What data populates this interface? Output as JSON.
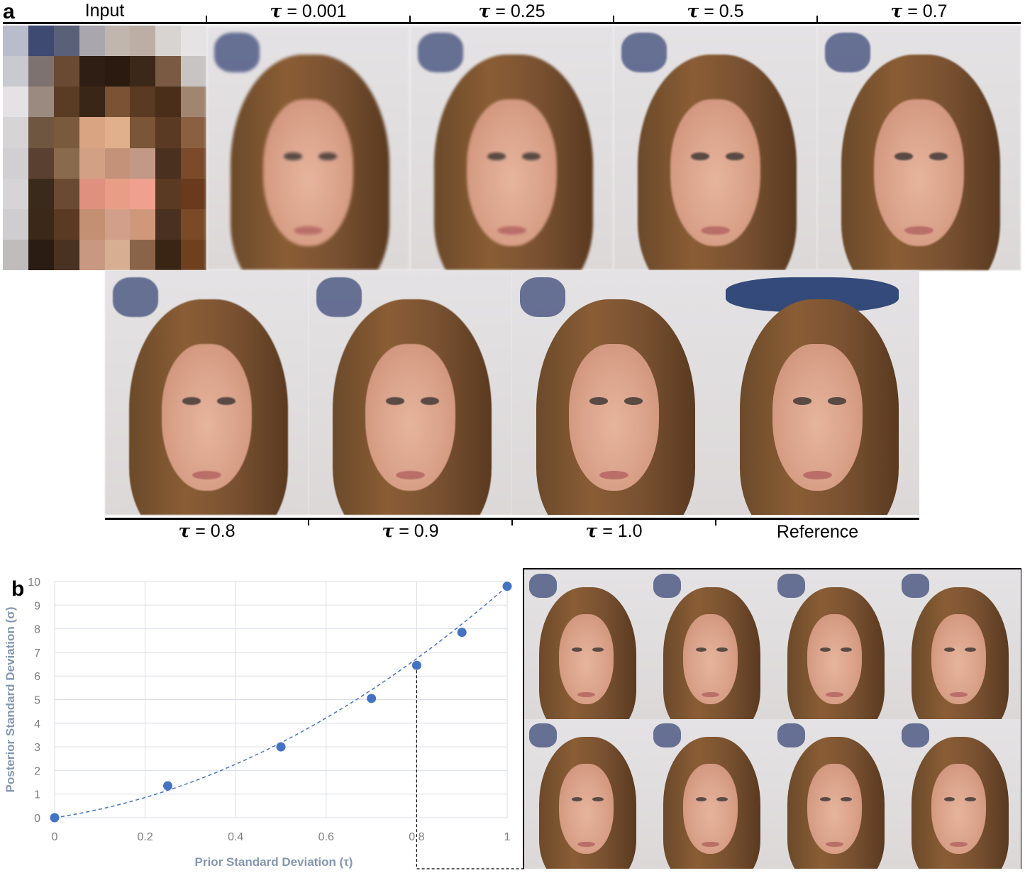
{
  "panel_a": {
    "letter": "a",
    "top_labels": [
      {
        "kind": "plain",
        "text": "Input"
      },
      {
        "kind": "tau",
        "symbol": "τ",
        "value": " = 0.001"
      },
      {
        "kind": "tau",
        "symbol": "τ",
        "value": " = 0.25"
      },
      {
        "kind": "tau",
        "symbol": "τ",
        "value": " = 0.5"
      },
      {
        "kind": "tau",
        "symbol": "τ",
        "value": " = 0.7"
      }
    ],
    "bottom_labels": [
      {
        "kind": "tau",
        "symbol": "τ",
        "value": " = 0.8"
      },
      {
        "kind": "tau",
        "symbol": "τ",
        "value": " = 0.9"
      },
      {
        "kind": "tau",
        "symbol": "τ",
        "value": " = 1.0"
      },
      {
        "kind": "plain",
        "text": "Reference"
      }
    ],
    "input_pixels": [
      "#b9bccb",
      "#3e4a72",
      "#5a6078",
      "#a9a7ad",
      "#c0b6ae",
      "#bcaea4",
      "#d8d4d2",
      "#e6e3e4",
      "#c9c9d0",
      "#7d7270",
      "#6a4a32",
      "#2e1e14",
      "#2a1a10",
      "#3c2818",
      "#7a5a42",
      "#c9c4c4",
      "#e4e2e4",
      "#9a8a80",
      "#5a3c24",
      "#3a2616",
      "#7a5234",
      "#5a3a22",
      "#4a2e1a",
      "#a08670",
      "#d7d4d6",
      "#6e5640",
      "#7a5a3c",
      "#d9a482",
      "#e0b08c",
      "#7a5538",
      "#5a3a22",
      "#8a6040",
      "#d2cfd2",
      "#5a4030",
      "#8a6a4c",
      "#d2a084",
      "#c49278",
      "#c29886",
      "#4a301e",
      "#7a4a2a",
      "#d6d4d6",
      "#3a2a1c",
      "#6a4a32",
      "#e0907e",
      "#e89e86",
      "#f0a08e",
      "#5a3a22",
      "#6a3a1c",
      "#cfcdcf",
      "#3a2818",
      "#5a3a22",
      "#c49074",
      "#d2a08a",
      "#d0987a",
      "#4a3020",
      "#7a4a26",
      "#c0bcbc",
      "#2a1c12",
      "#4a3222",
      "#c89880",
      "#d8ae92",
      "#8a6448",
      "#3a2414",
      "#6e4020"
    ]
  },
  "panel_b": {
    "letter": "b"
  },
  "chart_data": {
    "type": "scatter",
    "title": "",
    "xlabel": "Prior Standard Deviation (τ)",
    "ylabel": "Posterior Standard Deviation (σ)",
    "xlim": [
      0,
      1
    ],
    "ylim": [
      0,
      10
    ],
    "xticks": [
      "0",
      "0.2",
      "0.4",
      "0.6",
      "0.8",
      "1"
    ],
    "yticks": [
      "0",
      "1",
      "2",
      "3",
      "4",
      "5",
      "6",
      "7",
      "8",
      "9",
      "10"
    ],
    "grid": true,
    "trendline": "dashed",
    "highlight_x": 0.8,
    "series": [
      {
        "x": [
          0,
          0.25,
          0.5,
          0.7,
          0.8,
          0.9,
          1.0
        ],
        "y": [
          0.0,
          1.35,
          3.0,
          5.05,
          6.45,
          7.85,
          9.8
        ]
      }
    ],
    "colors": {
      "points": "#4472c4",
      "grid": "#dadde6",
      "axis_text": "#7f7f7f",
      "label_text": "#8497b0"
    }
  }
}
